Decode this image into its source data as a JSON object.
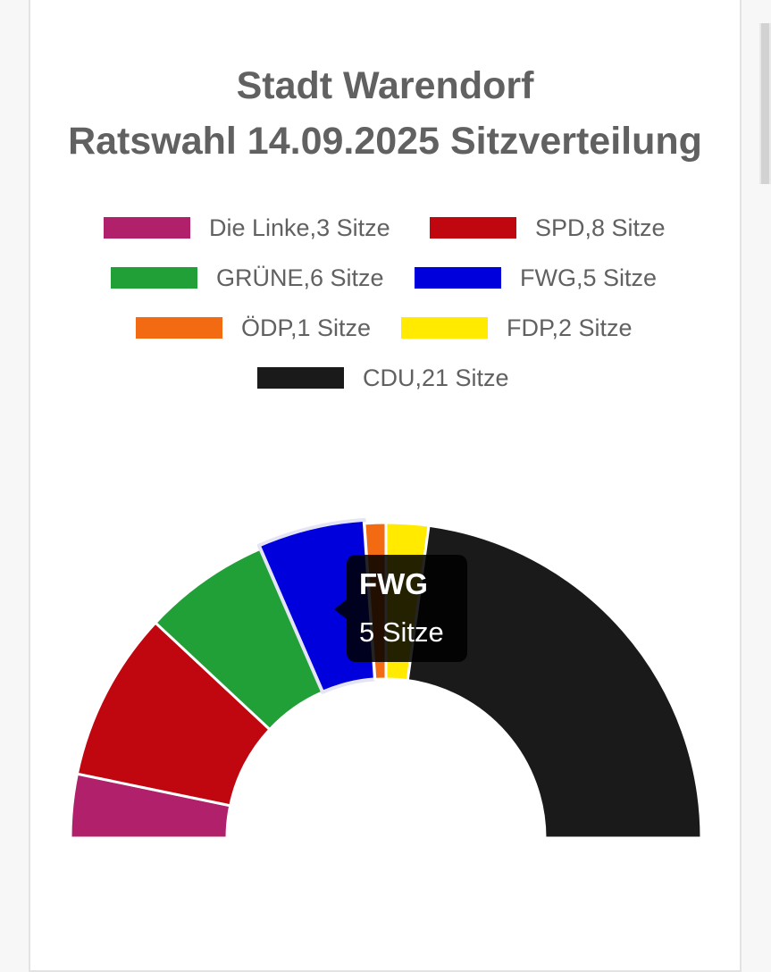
{
  "chart_data": {
    "type": "pie",
    "title": "Stadt Warendorf",
    "subtitle": "Ratswahl 14.09.2025 Sitzverteilung",
    "categories": [
      "Die Linke",
      "SPD",
      "GRÜNE",
      "FWG",
      "ÖDP",
      "FDP",
      "CDU"
    ],
    "values": [
      3,
      8,
      6,
      5,
      1,
      2,
      21
    ],
    "unit": "Sitze",
    "colors": [
      "#b0206b",
      "#c0060f",
      "#21a038",
      "#0000dc",
      "#f26a12",
      "#ffea00",
      "#1a1a1a"
    ],
    "half_donut": true,
    "legend_placement": "top",
    "legend": [
      {
        "label": "Die Linke,3 Sitze",
        "color": "#b0206b"
      },
      {
        "label": "SPD,8 Sitze",
        "color": "#c0060f"
      },
      {
        "label": "GRÜNE,6 Sitze",
        "color": "#21a038"
      },
      {
        "label": "FWG,5 Sitze",
        "color": "#0000dc"
      },
      {
        "label": "ÖDP,1 Sitze",
        "color": "#f26a12"
      },
      {
        "label": "FDP,2 Sitze",
        "color": "#ffea00"
      },
      {
        "label": "CDU,21 Sitze",
        "color": "#1a1a1a"
      }
    ],
    "tooltip": {
      "title": "FWG",
      "body": "5 Sitze",
      "highlighted": "FWG"
    }
  }
}
